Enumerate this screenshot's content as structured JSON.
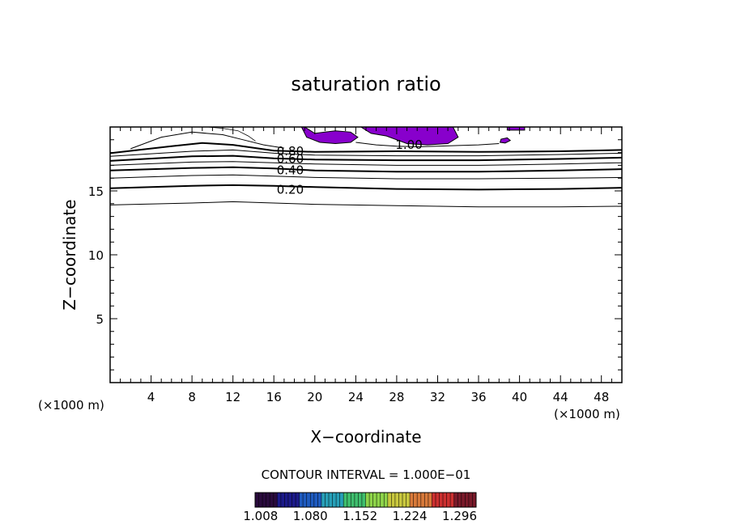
{
  "chart_data": {
    "type": "contour",
    "title": "saturation ratio",
    "xlabel": "X−coordinate",
    "ylabel": "Z−coordinate",
    "x_unit": "(×1000 m)",
    "z_unit": "(×1000 m)",
    "xlim": [
      0,
      50
    ],
    "ylim": [
      0,
      20
    ],
    "x_ticks": [
      4,
      8,
      12,
      16,
      20,
      24,
      28,
      32,
      36,
      40,
      44,
      48
    ],
    "y_ticks": [
      5,
      10,
      15
    ],
    "contour_interval_text": "CONTOUR INTERVAL = 1.000E−01",
    "contour_labels": [
      {
        "text": "1.00",
        "x": 29.2,
        "z": 18.6
      },
      {
        "text": "0.80",
        "x": 17.6,
        "z": 18.1
      },
      {
        "text": "0.60",
        "x": 17.6,
        "z": 17.5
      },
      {
        "text": "0.40",
        "x": 17.6,
        "z": 16.6
      },
      {
        "text": "0.20",
        "x": 17.6,
        "z": 15.1
      }
    ],
    "contours": [
      {
        "level": 0.1,
        "x": [
          0,
          8,
          12,
          16,
          20,
          28,
          36,
          44,
          50
        ],
        "z": [
          13.9,
          14.05,
          14.15,
          14.05,
          13.95,
          13.85,
          13.75,
          13.75,
          13.8
        ],
        "bold": false
      },
      {
        "level": 0.2,
        "x": [
          0,
          8,
          12,
          16,
          20,
          28,
          36,
          44,
          50
        ],
        "z": [
          15.2,
          15.4,
          15.45,
          15.4,
          15.3,
          15.15,
          15.1,
          15.15,
          15.25
        ],
        "bold": true
      },
      {
        "level": 0.3,
        "x": [
          0,
          8,
          12,
          16,
          20,
          28,
          36,
          44,
          50
        ],
        "z": [
          16.0,
          16.2,
          16.25,
          16.15,
          16.05,
          15.95,
          15.95,
          16.0,
          16.05
        ],
        "bold": false
      },
      {
        "level": 0.4,
        "x": [
          0,
          8,
          12,
          16,
          20,
          28,
          36,
          44,
          50
        ],
        "z": [
          16.6,
          16.8,
          16.85,
          16.75,
          16.6,
          16.5,
          16.5,
          16.6,
          16.7
        ],
        "bold": true
      },
      {
        "level": 0.5,
        "x": [
          0,
          8,
          12,
          16,
          20,
          28,
          36,
          44,
          50
        ],
        "z": [
          17.0,
          17.25,
          17.3,
          17.2,
          17.1,
          17.0,
          17.0,
          17.1,
          17.2
        ],
        "bold": false
      },
      {
        "level": 0.6,
        "x": [
          0,
          8,
          12,
          16,
          20,
          28,
          36,
          44,
          50
        ],
        "z": [
          17.35,
          17.7,
          17.75,
          17.55,
          17.45,
          17.4,
          17.4,
          17.5,
          17.6
        ],
        "bold": true
      },
      {
        "level": 0.7,
        "x": [
          0,
          8,
          12,
          16,
          20,
          28,
          36,
          44,
          50
        ],
        "z": [
          17.7,
          18.1,
          18.2,
          17.95,
          17.8,
          17.75,
          17.75,
          17.85,
          17.95
        ],
        "bold": false
      },
      {
        "level": 0.8,
        "x": [
          0,
          6,
          9,
          12,
          16,
          20,
          28,
          36,
          44,
          50
        ],
        "z": [
          17.95,
          18.5,
          18.75,
          18.6,
          18.15,
          18.05,
          18.1,
          18.05,
          18.1,
          18.2
        ],
        "bold": true
      },
      {
        "level": 0.9,
        "x": [
          2,
          5,
          8,
          11,
          13,
          15,
          17
        ],
        "z": [
          18.3,
          19.2,
          19.6,
          19.4,
          19.0,
          18.6,
          18.35
        ],
        "bold": false
      },
      {
        "level": 1.0,
        "x": [
          24,
          26,
          28,
          30,
          32,
          34,
          36,
          38
        ],
        "z": [
          18.8,
          18.6,
          18.5,
          18.45,
          18.5,
          18.55,
          18.6,
          18.7
        ],
        "bold": false
      }
    ],
    "supersaturated_regions": [
      {
        "x": [
          9.5,
          11,
          12.5,
          13.5,
          14.2
        ],
        "z": [
          20,
          19.9,
          19.7,
          19.3,
          18.9
        ],
        "outline_only": true
      },
      {
        "x": [
          18.7,
          19.2,
          20.5,
          22,
          23.5,
          24.2,
          23.5,
          22,
          21,
          20,
          19
        ],
        "z": [
          20,
          19.2,
          18.8,
          18.7,
          18.8,
          19.2,
          19.6,
          19.7,
          19.6,
          19.5,
          20
        ],
        "outline_only": false
      },
      {
        "x": [
          24.5,
          25.5,
          27,
          29,
          31,
          33,
          34,
          33.5,
          32,
          30,
          28,
          26,
          25,
          24.6
        ],
        "z": [
          20,
          19.5,
          19.3,
          18.7,
          18.6,
          18.7,
          19.2,
          20,
          20,
          20,
          20,
          20,
          20,
          20
        ],
        "outline_only": false
      },
      {
        "x": [
          38.1,
          38.6,
          39.1,
          38.8,
          38.2
        ],
        "z": [
          18.8,
          18.75,
          18.95,
          19.15,
          19.05
        ],
        "outline_only": false
      },
      {
        "x": [
          38.8,
          40.5,
          40.5,
          38.8
        ],
        "z": [
          20,
          20,
          19.75,
          19.75
        ],
        "outline_only": false
      }
    ],
    "fill_color": "#8800cc",
    "colorbar": {
      "ticks": [
        "1.008",
        "1.080",
        "1.152",
        "1.224",
        "1.296"
      ],
      "min": 1.0,
      "max": 1.32,
      "colors": [
        "#2a0b3d",
        "#1c1a8a",
        "#1e5bc0",
        "#27a0b8",
        "#3fbf6e",
        "#8ed44a",
        "#c9c83e",
        "#d97a3a",
        "#cc3030",
        "#7a1a2a"
      ]
    }
  }
}
